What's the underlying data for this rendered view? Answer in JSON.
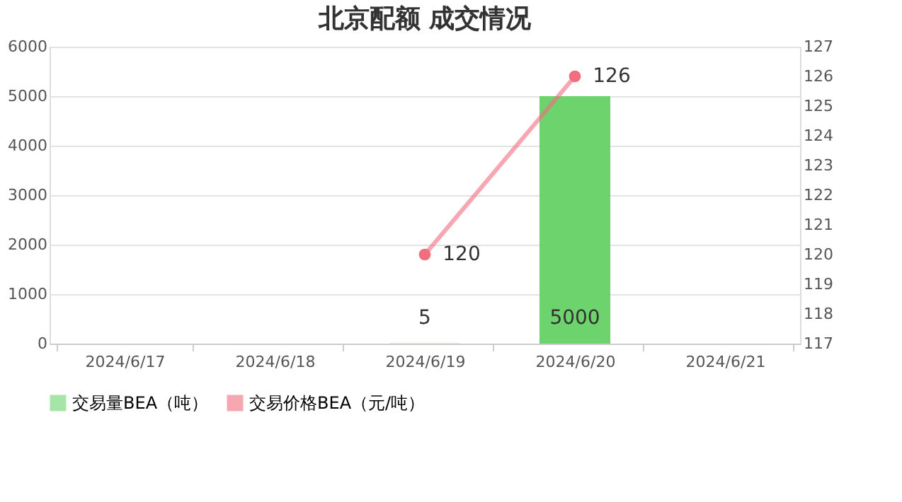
{
  "chart_data": {
    "type": "bar",
    "title": "北京配额 成交情况",
    "categories": [
      "2024/6/17",
      "2024/6/18",
      "2024/6/19",
      "2024/6/20",
      "2024/6/21"
    ],
    "series": [
      {
        "name": "交易量BEA（吨）",
        "color": "#6dd36d",
        "values": [
          null,
          null,
          5,
          5000,
          null
        ]
      },
      {
        "name": "交易价格BEA（元/吨）",
        "type": "line",
        "axis": "y2",
        "color": "#f26d7d",
        "values": [
          null,
          null,
          120,
          126,
          null
        ]
      }
    ],
    "ylim": [
      0,
      6000
    ],
    "yticks": [
      0,
      1000,
      2000,
      3000,
      4000,
      5000,
      6000
    ],
    "y2lim": [
      117,
      127
    ],
    "y2ticks": [
      117,
      118,
      119,
      120,
      121,
      122,
      123,
      124,
      125,
      126,
      127
    ],
    "data_labels": true,
    "grid": "y",
    "legend": "bottom",
    "marker": "circle",
    "line_style": "solid"
  }
}
